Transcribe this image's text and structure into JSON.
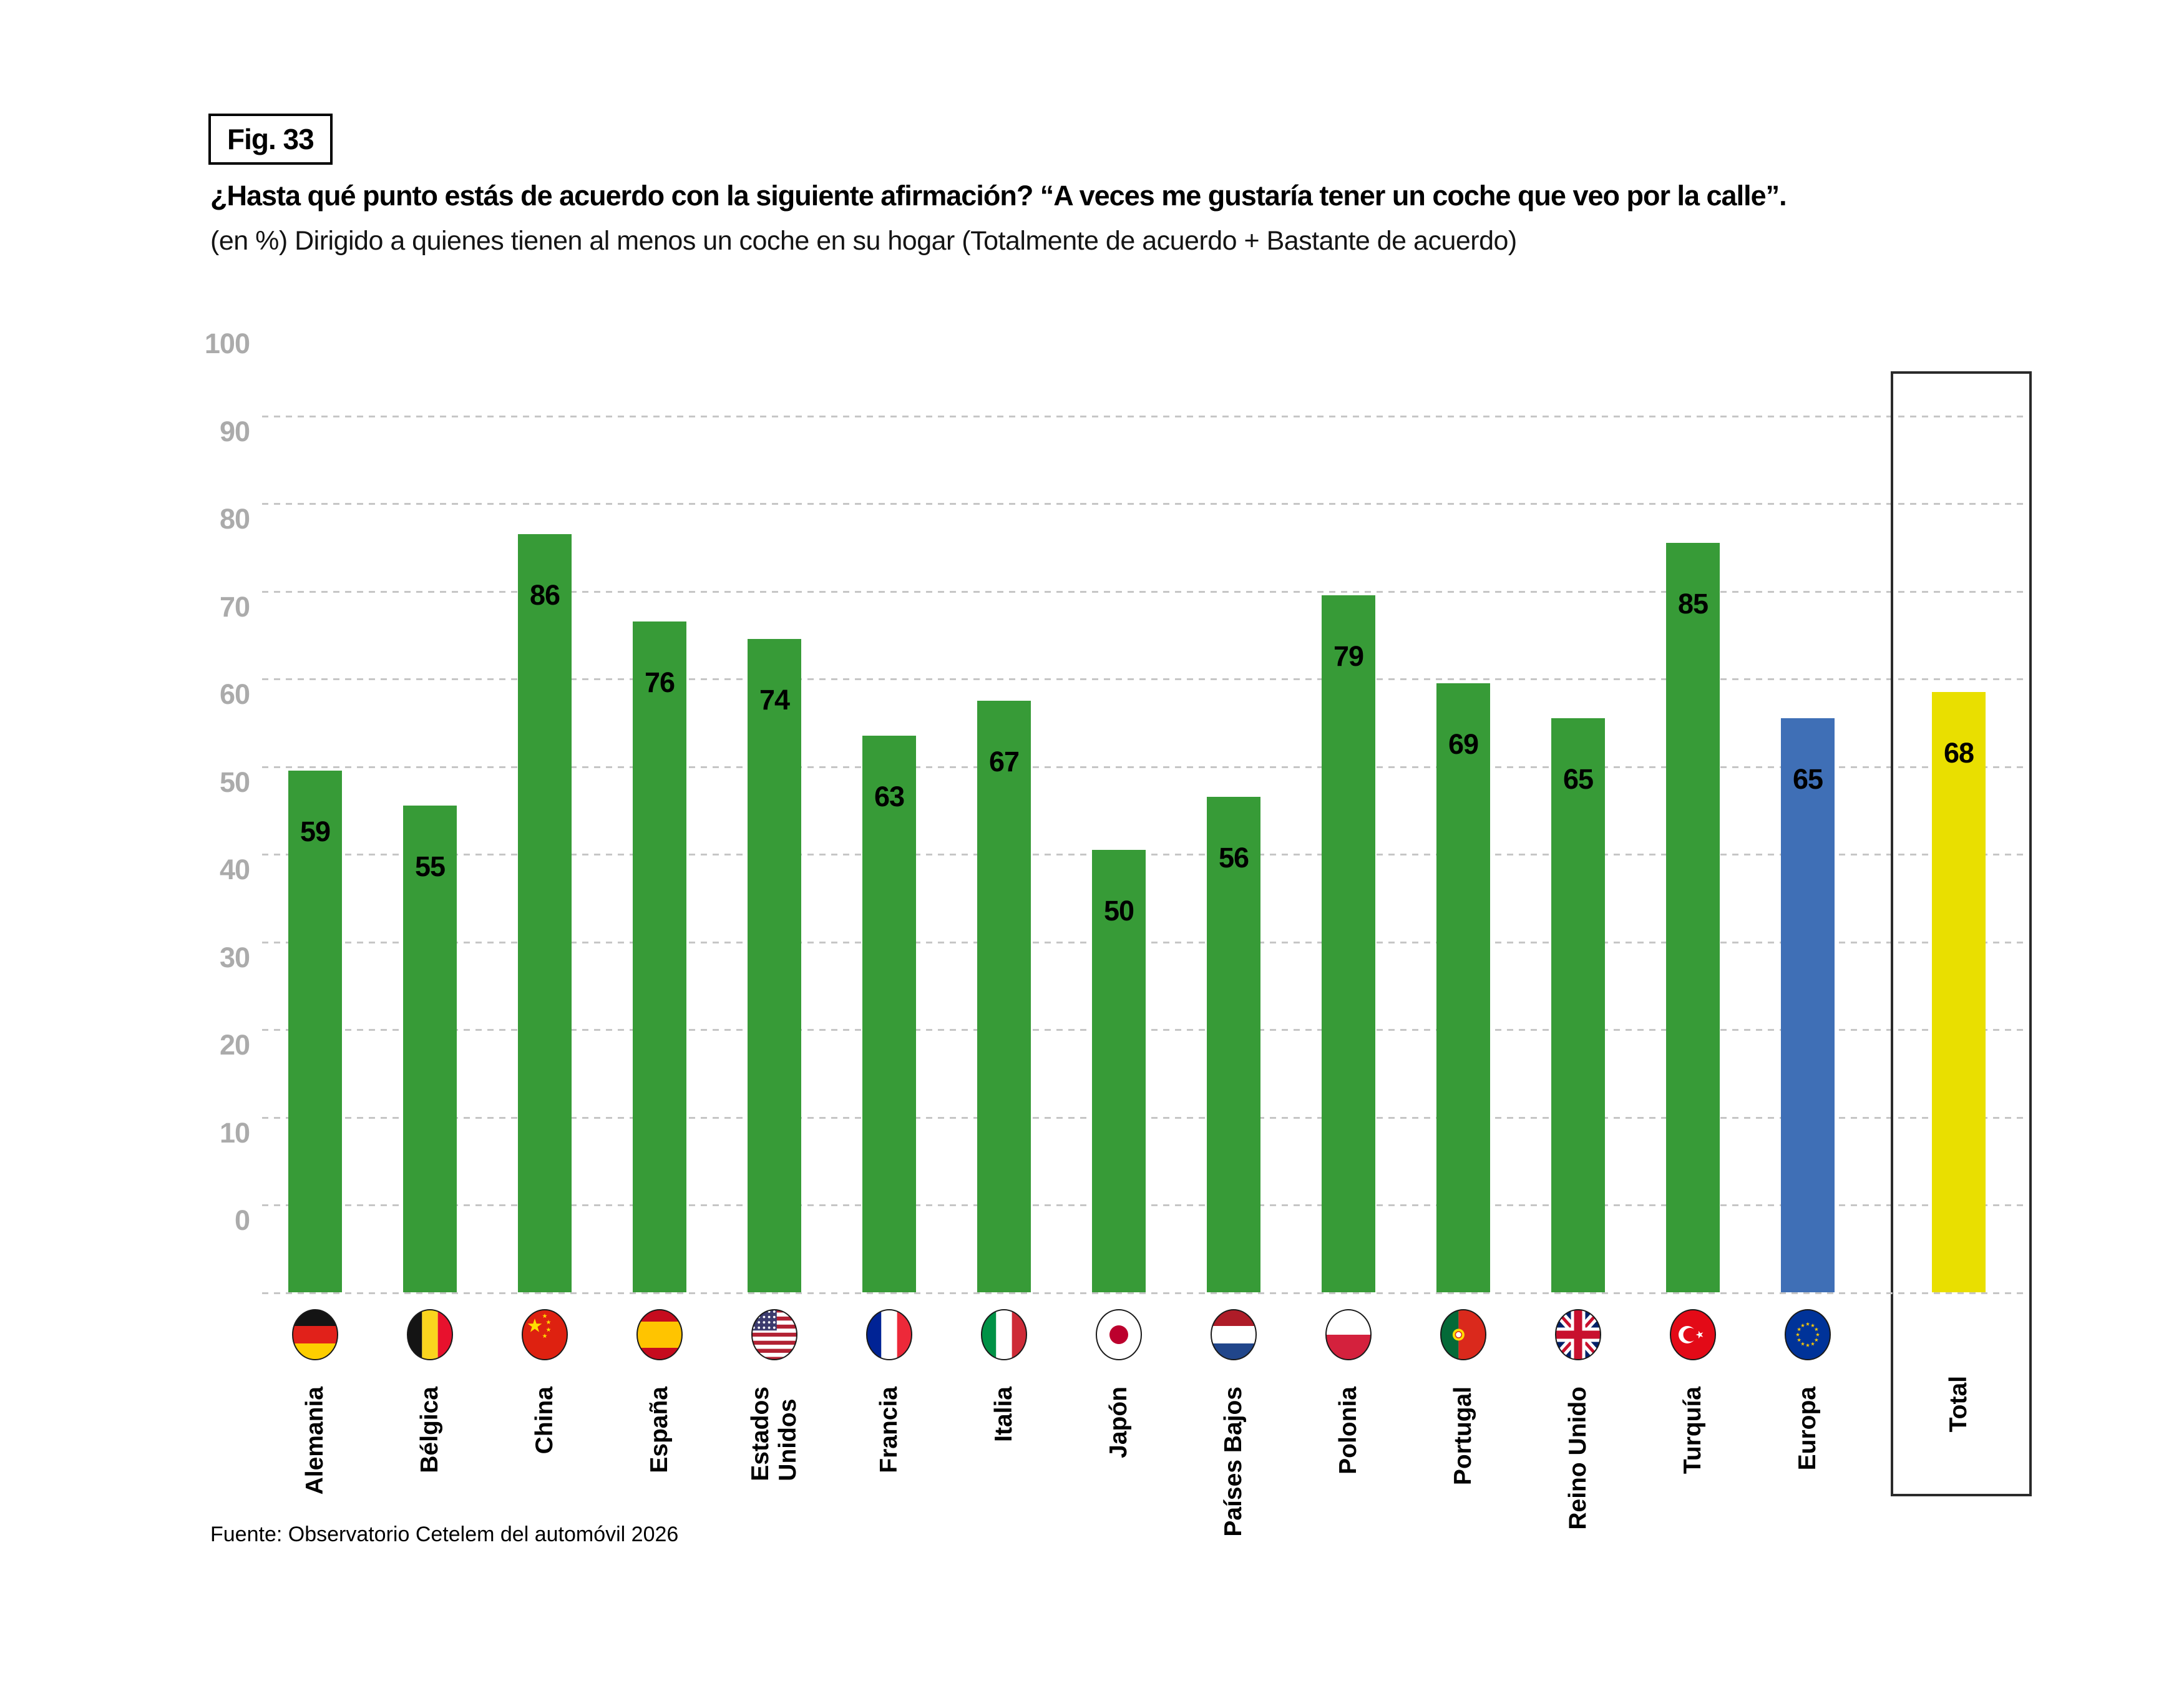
{
  "figure_tag": "Fig. 33",
  "header": {
    "title": "¿Hasta qué punto estás de acuerdo con la siguiente afirmación? “A veces me gustaría tener un coche que veo por la calle”.",
    "subtitle": "(en %) Dirigido a quienes tienen al menos un coche en su hogar (Totalmente de acuerdo + Bastante de acuerdo)"
  },
  "source_note": "Fuente: Observatorio Cetelem del automóvil 2026",
  "colors": {
    "bar_green": "#379b37",
    "bar_blue": "#3f6fb6",
    "bar_yellow": "#e9df00",
    "grid": "#c6c6c6",
    "tick_label": "#ababab",
    "box_border": "#2b2b2b"
  },
  "chart_data": {
    "type": "bar",
    "title": "¿Hasta qué punto estás de acuerdo con la siguiente afirmación? “A veces me gustaría tener un coche que veo por la calle”.",
    "subtitle": "(en %) Dirigido a quienes tienen al menos un coche en su hogar (Totalmente de acuerdo + Bastante de acuerdo)",
    "xlabel": "",
    "ylabel": "",
    "ylim": [
      0,
      100
    ],
    "yticks": [
      0,
      10,
      20,
      30,
      40,
      50,
      60,
      70,
      80,
      90,
      100
    ],
    "grid": true,
    "legend_position": "none",
    "categories": [
      "Alemania",
      "Bélgica",
      "China",
      "España",
      "Estados\nUnidos",
      "Francia",
      "Italia",
      "Japón",
      "Países Bajos",
      "Polonia",
      "Portugal",
      "Reino Unido",
      "Turquía",
      "Europa",
      "Total"
    ],
    "values": [
      59,
      55,
      86,
      76,
      74,
      63,
      67,
      50,
      56,
      79,
      69,
      65,
      85,
      65,
      68
    ],
    "bar_color_keys": [
      "bar_green",
      "bar_green",
      "bar_green",
      "bar_green",
      "bar_green",
      "bar_green",
      "bar_green",
      "bar_green",
      "bar_green",
      "bar_green",
      "bar_green",
      "bar_green",
      "bar_green",
      "bar_blue",
      "bar_yellow"
    ],
    "flags": [
      "flag-germany",
      "flag-belgium",
      "flag-china",
      "flag-spain",
      "flag-usa",
      "flag-france",
      "flag-italy",
      "flag-japan",
      "flag-netherlands",
      "flag-poland",
      "flag-portugal",
      "flag-uk",
      "flag-turkey",
      "flag-europe",
      null
    ],
    "highlighted_category": "Total"
  }
}
